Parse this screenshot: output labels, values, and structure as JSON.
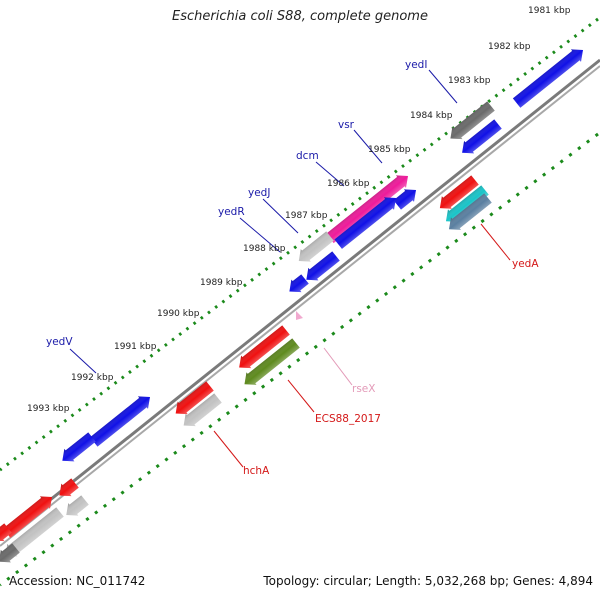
{
  "title": "Escherichia coli S88, complete genome",
  "footer": {
    "accession": "Accession: NC_011742",
    "summary": "Topology: circular; Length: 5,032,268 bp; Genes: 4,894"
  },
  "colors": {
    "blue": "#1010e6",
    "red": "#ef1010",
    "gray": "#c2c2c2",
    "darkgray": "#6a6a6a",
    "pink": "#ee1a9a",
    "olive": "#5e8a1e",
    "cyan": "#19c4c8",
    "steel": "#5a7fa0",
    "tick_green": "#1b8a1b",
    "label_blue": "#1a1aa8",
    "label_red": "#d41818",
    "label_pink": "#e39ab8",
    "backbone": "#7a7a7a"
  },
  "kbp_ticks": [
    "1981 kbp",
    "1982 kbp",
    "1983 kbp",
    "1984 kbp",
    "1985 kbp",
    "1986 kbp",
    "1987 kbp",
    "1988 kbp",
    "1989 kbp",
    "1990 kbp",
    "1991 kbp",
    "1992 kbp",
    "1993 kbp"
  ],
  "gene_labels": [
    {
      "text": "yedI",
      "color": "label_blue"
    },
    {
      "text": "vsr",
      "color": "label_blue"
    },
    {
      "text": "dcm",
      "color": "label_blue"
    },
    {
      "text": "yedJ",
      "color": "label_blue"
    },
    {
      "text": "yedR",
      "color": "label_blue"
    },
    {
      "text": "yedV",
      "color": "label_blue"
    },
    {
      "text": "yedA",
      "color": "label_red"
    },
    {
      "text": "rseX",
      "color": "label_pink"
    },
    {
      "text": "ECS88_2017",
      "color": "label_red"
    },
    {
      "text": "hchA",
      "color": "label_red"
    }
  ]
}
